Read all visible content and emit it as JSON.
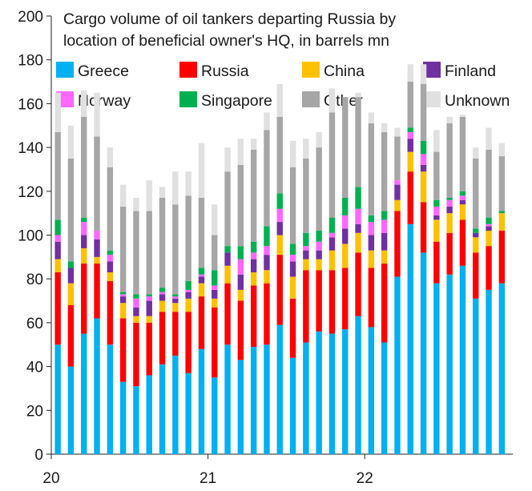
{
  "chart_data": {
    "type": "bar",
    "stacked": true,
    "title": "Cargo volume of oil tankers departing Russia by location of beneficial owner's HQ, in barrels mn",
    "title_lines": [
      "Cargo volume of oil tankers departing Russia by",
      "location of beneficial owner's HQ, in barrels mn"
    ],
    "xlabel": "",
    "ylabel": "",
    "ylim": [
      0,
      200
    ],
    "yticks": [
      0,
      20,
      40,
      60,
      80,
      100,
      120,
      140,
      160,
      180,
      200
    ],
    "x_tick_labels": [
      {
        "label": "20",
        "index": 0
      },
      {
        "label": "21",
        "index": 12
      },
      {
        "label": "22",
        "index": 24
      }
    ],
    "grid": false,
    "legend_position": "top",
    "categories": [
      "2020-01",
      "2020-02",
      "2020-03",
      "2020-04",
      "2020-05",
      "2020-06",
      "2020-07",
      "2020-08",
      "2020-09",
      "2020-10",
      "2020-11",
      "2020-12",
      "2021-01",
      "2021-02",
      "2021-03",
      "2021-04",
      "2021-05",
      "2021-06",
      "2021-07",
      "2021-08",
      "2021-09",
      "2021-10",
      "2021-11",
      "2021-12",
      "2022-01",
      "2022-02",
      "2022-03",
      "2022-04",
      "2022-05",
      "2022-06",
      "2022-07",
      "2022-08",
      "2022-09",
      "2022-10",
      "2022-11"
    ],
    "series": [
      {
        "name": "Greece",
        "color": "#00B0F0",
        "values": [
          50,
          40,
          55,
          62,
          50,
          33,
          31,
          36,
          41,
          45,
          37,
          48,
          35,
          50,
          43,
          49,
          50,
          59,
          44,
          51,
          56,
          55,
          57,
          63,
          58,
          51,
          81,
          105,
          92,
          78,
          82,
          86,
          71,
          75,
          78
        ]
      },
      {
        "name": "Russia",
        "color": "#FF0000",
        "values": [
          33,
          28,
          32,
          25,
          29,
          29,
          29,
          24,
          24,
          20,
          28,
          24,
          32,
          28,
          27,
          28,
          28,
          32,
          27,
          33,
          28,
          29,
          28,
          29,
          27,
          36,
          30,
          24,
          23,
          19,
          19,
          21,
          21,
          20,
          24
        ]
      },
      {
        "name": "China",
        "color": "#FFC000",
        "values": [
          6,
          10,
          7,
          3,
          4,
          7,
          3,
          3,
          5,
          4,
          6,
          6,
          4,
          8,
          5,
          6,
          6,
          9,
          10,
          5,
          5,
          9,
          11,
          9,
          8,
          6,
          5,
          9,
          14,
          10,
          9,
          7,
          7,
          7,
          8
        ]
      },
      {
        "name": "Finland",
        "color": "#7030A0",
        "values": [
          8,
          7,
          6,
          8,
          5,
          3,
          4,
          7,
          3,
          2,
          3,
          3,
          4,
          6,
          7,
          6,
          7,
          6,
          7,
          4,
          4,
          6,
          7,
          4,
          7,
          8,
          7,
          6,
          3,
          2,
          3,
          2,
          2,
          2,
          0
        ]
      },
      {
        "name": "Norway",
        "color": "#FF66FF",
        "values": [
          3,
          0,
          6,
          4,
          3,
          1,
          4,
          2,
          1,
          1,
          1,
          1,
          2,
          0,
          7,
          3,
          4,
          6,
          3,
          2,
          4,
          2,
          6,
          7,
          6,
          6,
          2,
          3,
          5,
          4,
          3,
          2,
          0,
          1,
          0
        ]
      },
      {
        "name": "Singapore",
        "color": "#00B050",
        "values": [
          7,
          3,
          2,
          0,
          2,
          1,
          2,
          1,
          2,
          1,
          4,
          3,
          7,
          3,
          6,
          5,
          9,
          7,
          5,
          6,
          5,
          7,
          8,
          10,
          3,
          4,
          0,
          2,
          6,
          3,
          1,
          2,
          2,
          3,
          1
        ]
      },
      {
        "name": "Other",
        "color": "#A6A6A6",
        "values": [
          40,
          47,
          46,
          43,
          38,
          39,
          38,
          38,
          41,
          41,
          39,
          32,
          16,
          34,
          37,
          42,
          44,
          35,
          35,
          34,
          38,
          48,
          46,
          41,
          42,
          36,
          20,
          21,
          26,
          22,
          34,
          34,
          32,
          31,
          25
        ]
      },
      {
        "name": "Unknown",
        "color": "#E0E0E0",
        "values": [
          18,
          15,
          12,
          20,
          9,
          10,
          6,
          14,
          5,
          15,
          11,
          25,
          14,
          11,
          12,
          5,
          8,
          15,
          12,
          9,
          7,
          11,
          0,
          2,
          5,
          4,
          4,
          8,
          9,
          10,
          3,
          1,
          5,
          10,
          6
        ]
      }
    ]
  }
}
